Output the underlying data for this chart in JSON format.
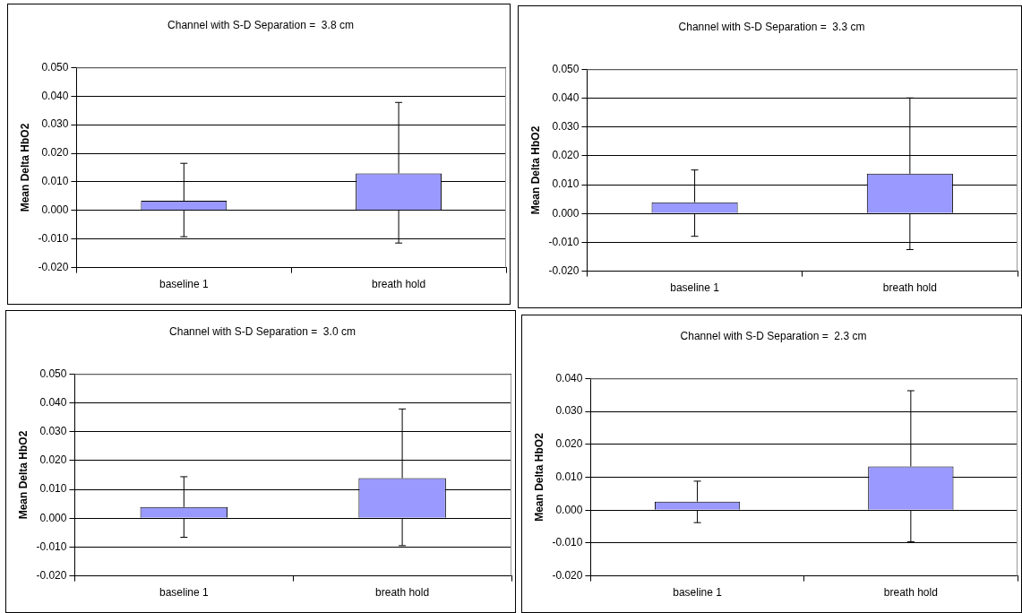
{
  "chart_data": [
    {
      "type": "bar",
      "title": "Channel with S-D Separation =  3.8 cm",
      "ylabel": "Mean Delta HbO2",
      "categories": [
        "baseline 1",
        "breath hold"
      ],
      "values": [
        0.0034,
        0.013
      ],
      "color": "#9999ff",
      "errors": [
        [
          -0.0092,
          0.0165
        ],
        [
          -0.0114,
          0.0378
        ]
      ],
      "ylim": [
        -0.02,
        0.05
      ],
      "yticks": [
        {
          "value": -0.02,
          "label": "-0.020"
        },
        {
          "value": -0.01,
          "label": "-0.010"
        },
        {
          "value": 0,
          "label": "0.000"
        },
        {
          "value": 0.01,
          "label": "0.010"
        },
        {
          "value": 0.02,
          "label": "0.020"
        },
        {
          "value": 0.03,
          "label": "0.030"
        },
        {
          "value": 0.04,
          "label": "0.040"
        },
        {
          "value": 0.05,
          "label": "0.050"
        }
      ],
      "grid": "y",
      "legend": false
    },
    {
      "type": "bar",
      "title": "Channel with S-D Separation =  3.3 cm",
      "ylabel": "Mean Delta HbO2",
      "categories": [
        "baseline 1",
        "breath hold"
      ],
      "values": [
        0.0039,
        0.0138
      ],
      "color": "#9999ff",
      "errors": [
        [
          -0.0079,
          0.0151
        ],
        [
          -0.0125,
          0.0401
        ]
      ],
      "ylim": [
        -0.02,
        0.05
      ],
      "yticks": [
        {
          "value": -0.02,
          "label": "-0.020"
        },
        {
          "value": -0.01,
          "label": "-0.010"
        },
        {
          "value": 0,
          "label": "0.000"
        },
        {
          "value": 0.01,
          "label": "0.010"
        },
        {
          "value": 0.02,
          "label": "0.020"
        },
        {
          "value": 0.03,
          "label": "0.030"
        },
        {
          "value": 0.04,
          "label": "0.040"
        },
        {
          "value": 0.05,
          "label": "0.050"
        }
      ],
      "grid": "y",
      "legend": false
    },
    {
      "type": "bar",
      "title": "Channel with S-D Separation =  3.0 cm",
      "ylabel": "Mean Delta HbO2",
      "categories": [
        "baseline 1",
        "breath hold"
      ],
      "values": [
        0.0039,
        0.0139
      ],
      "color": "#9999ff",
      "errors": [
        [
          -0.0066,
          0.0144
        ],
        [
          -0.0095,
          0.0379
        ]
      ],
      "ylim": [
        -0.02,
        0.05
      ],
      "yticks": [
        {
          "value": -0.02,
          "label": "-0.020"
        },
        {
          "value": -0.01,
          "label": "-0.010"
        },
        {
          "value": 0,
          "label": "0.000"
        },
        {
          "value": 0.01,
          "label": "0.010"
        },
        {
          "value": 0.02,
          "label": "0.020"
        },
        {
          "value": 0.03,
          "label": "0.030"
        },
        {
          "value": 0.04,
          "label": "0.040"
        },
        {
          "value": 0.05,
          "label": "0.050"
        }
      ],
      "grid": "y",
      "legend": false
    },
    {
      "type": "bar",
      "title": "Channel with S-D Separation =  2.3 cm",
      "ylabel": "Mean Delta HbO2",
      "categories": [
        "baseline 1",
        "breath hold"
      ],
      "values": [
        0.0026,
        0.0133
      ],
      "color": "#9999ff",
      "errors": [
        [
          -0.0038,
          0.0088
        ],
        [
          -0.0096,
          0.0363
        ]
      ],
      "ylim": [
        -0.02,
        0.04
      ],
      "yticks": [
        {
          "value": -0.02,
          "label": "-0.020"
        },
        {
          "value": -0.01,
          "label": "-0.010"
        },
        {
          "value": 0,
          "label": "0.000"
        },
        {
          "value": 0.01,
          "label": "0.010"
        },
        {
          "value": 0.02,
          "label": "0.020"
        },
        {
          "value": 0.03,
          "label": "0.030"
        },
        {
          "value": 0.04,
          "label": "0.040"
        }
      ],
      "grid": "y",
      "legend": false
    }
  ]
}
